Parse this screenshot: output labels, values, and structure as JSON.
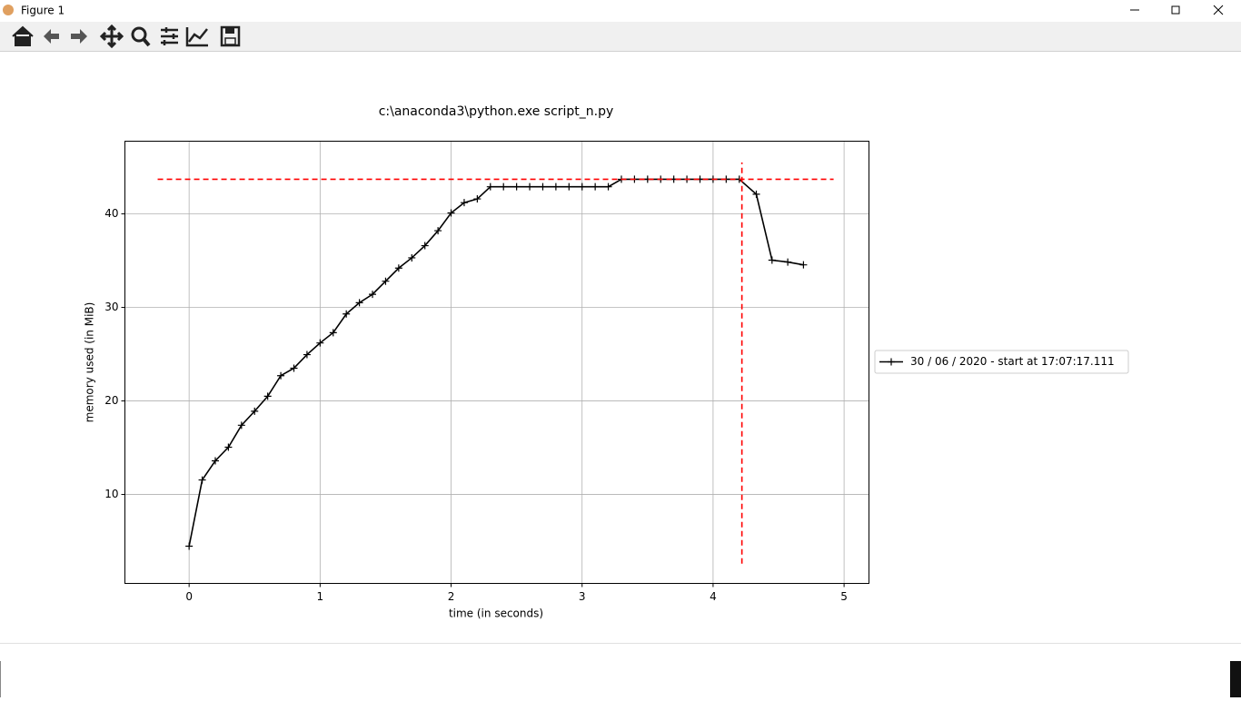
{
  "window": {
    "title": "Figure 1"
  },
  "chart_data": {
    "type": "line",
    "title": "c:\\anaconda3\\python.exe script_n.py",
    "xlabel": "time (in seconds)",
    "ylabel": "memory used (in MiB)",
    "x": [
      0,
      0.1,
      0.2,
      0.3,
      0.4,
      0.5,
      0.6,
      0.7,
      0.8,
      0.9,
      1.0,
      1.1,
      1.2,
      1.3,
      1.4,
      1.5,
      1.6,
      1.7,
      1.8,
      1.9,
      2.0,
      2.1,
      2.2,
      2.3,
      2.4,
      2.5,
      2.6,
      2.7,
      2.8,
      2.9,
      3.0,
      3.1,
      3.2,
      3.3,
      3.4,
      3.5,
      3.6,
      3.7,
      3.8,
      3.9,
      4.0,
      4.1,
      4.2,
      4.33,
      4.45,
      4.57,
      4.69
    ],
    "series": [
      {
        "name": "30 / 06 / 2020 - start at 17:07:17.111",
        "color": "#000000",
        "marker": "+",
        "values": [
          4.47,
          11.55,
          13.6,
          15.05,
          17.4,
          18.9,
          20.5,
          22.7,
          23.5,
          24.95,
          26.2,
          27.3,
          29.3,
          30.5,
          31.4,
          32.8,
          34.2,
          35.3,
          36.6,
          38.2,
          40.1,
          41.2,
          41.6,
          42.9,
          42.9,
          42.9,
          42.9,
          42.9,
          42.9,
          42.9,
          42.9,
          42.9,
          42.9,
          43.7,
          43.7,
          43.7,
          43.7,
          43.7,
          43.7,
          43.7,
          43.7,
          43.7,
          43.7,
          42.1,
          35.05,
          34.85,
          34.55
        ]
      }
    ],
    "hlines": [
      {
        "y": 43.7,
        "xmin": -0.24,
        "xmax": 4.92,
        "color": "#ff0000"
      }
    ],
    "vlines": [
      {
        "x": 4.22,
        "ymin": 2.6,
        "ymax": 45.5,
        "color": "#ff0000"
      }
    ],
    "xlim": [
      -0.49,
      5.19
    ],
    "ylim": [
      0.49,
      47.77
    ],
    "xticks": [
      0,
      1,
      2,
      3,
      4,
      5
    ],
    "yticks": [
      10,
      20,
      30,
      40
    ],
    "grid": true,
    "legend": "center left outside"
  }
}
